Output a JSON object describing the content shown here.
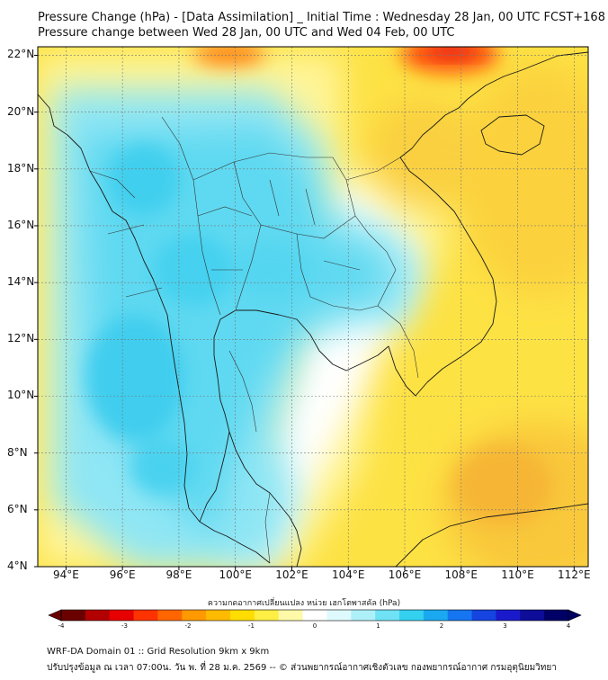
{
  "header": {
    "title_line1": "Pressure Change (hPa) - [Data Assimilation] _ Initial Time : Wednesday 28 Jan, 00 UTC FCST+168",
    "title_line2": "Pressure change between Wed 28 Jan, 00 UTC and Wed 04 Feb, 00 UTC"
  },
  "map": {
    "lat_labels": [
      "22°N",
      "20°N",
      "18°N",
      "16°N",
      "14°N",
      "12°N",
      "10°N",
      "8°N",
      "6°N",
      "4°N"
    ],
    "lat_values": [
      22,
      20,
      18,
      16,
      14,
      12,
      10,
      8,
      6,
      4
    ],
    "lon_labels": [
      "94°E",
      "96°E",
      "98°E",
      "100°E",
      "102°E",
      "104°E",
      "106°E",
      "108°E",
      "110°E",
      "112°E"
    ],
    "lon_values": [
      94,
      96,
      98,
      100,
      102,
      104,
      106,
      108,
      110,
      112
    ],
    "extent": {
      "lon": [
        93.0,
        112.5
      ],
      "lat": [
        4.0,
        22.3
      ]
    }
  },
  "colorbar": {
    "title": "ความกดอากาศเปลี่ยนแปลง หน่วย เฮกโตพาสคัล (hPa)",
    "range": [
      -4,
      4
    ],
    "ticks": [
      "-4",
      "-3",
      "-2",
      "-1",
      "0",
      "1",
      "2",
      "3",
      "4"
    ],
    "colors": [
      "#6a0000",
      "#b30000",
      "#e60000",
      "#ff3300",
      "#ff6600",
      "#ff9900",
      "#ffbb00",
      "#ffdd00",
      "#ffee44",
      "#fff9a8",
      "#ffffff",
      "#dffaff",
      "#aef0fa",
      "#6fe2f5",
      "#33d0f0",
      "#1aa9f0",
      "#1675f0",
      "#1544e0",
      "#1a1acc",
      "#0d0d99",
      "#000066"
    ]
  },
  "footer": {
    "line1": "WRF-DA Domain 01 :: Grid Resolution 9km x 9km",
    "line2": "ปรับปรุงข้อมูล ณ เวลา 07:00น. วัน พ. ที่ 28 ม.ค. 2569 -- © ส่วนพยากรณ์อากาศเชิงตัวเลข กองพยากรณ์อากาศ กรมอุตุนิยมวิทยา"
  }
}
